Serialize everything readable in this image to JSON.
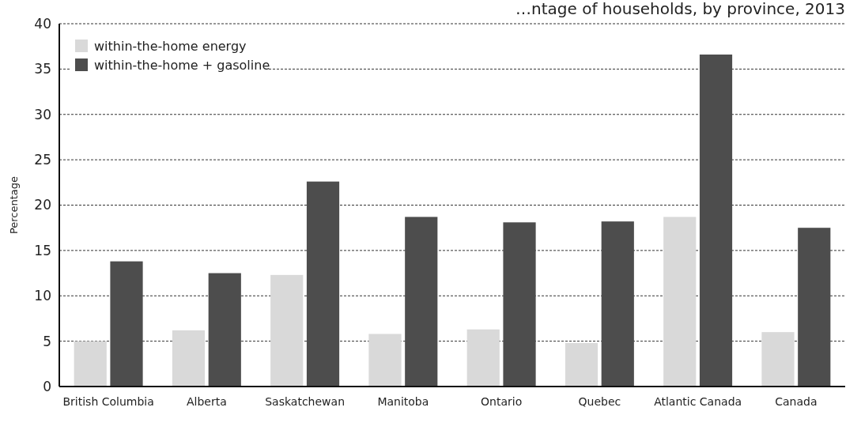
{
  "chart_data": {
    "type": "bar",
    "title": "…ntage of households, by province, 2013",
    "ylabel": "Percentage",
    "categories": [
      "British Columbia",
      "Alberta",
      "Saskatchewan",
      "Manitoba",
      "Ontario",
      "Quebec",
      "Atlantic Canada",
      "Canada"
    ],
    "series": [
      {
        "name": "within-the-home energy",
        "color": "#d9d9d9",
        "values": [
          5.0,
          6.2,
          12.3,
          5.8,
          6.3,
          4.8,
          18.7,
          6.0
        ]
      },
      {
        "name": "within-the-home + gasoline",
        "color": "#4d4d4d",
        "values": [
          13.8,
          12.5,
          22.6,
          18.7,
          18.1,
          18.2,
          36.6,
          17.5
        ]
      }
    ],
    "ylim": [
      0,
      40
    ],
    "yticks": [
      0,
      5,
      10,
      15,
      20,
      25,
      30,
      35,
      40
    ],
    "grid": "y",
    "legend": "top left"
  }
}
